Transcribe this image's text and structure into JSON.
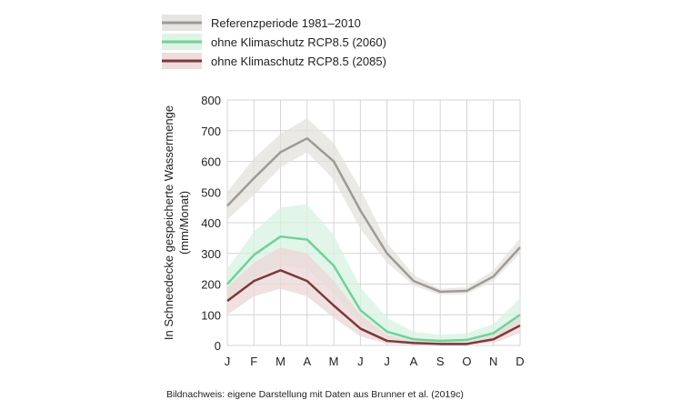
{
  "chart_data": {
    "type": "line",
    "categories": [
      "J",
      "F",
      "M",
      "A",
      "M",
      "J",
      "J",
      "A",
      "S",
      "O",
      "N",
      "D"
    ],
    "ylabel_line1": "In Schneedecke gespeicherte Wassermenge",
    "ylabel_line2": "(mm/Monat)",
    "ylim": [
      0,
      800
    ],
    "yticks": [
      0,
      100,
      200,
      300,
      400,
      500,
      600,
      700,
      800
    ],
    "grid": true,
    "legend_position": "top-left",
    "series": [
      {
        "name": "Referenzperiode 1981–2010",
        "color": "#9e9a96",
        "band_color": "#e3e1de",
        "values": [
          455,
          545,
          630,
          675,
          600,
          440,
          300,
          210,
          175,
          178,
          225,
          320
        ],
        "lower": [
          410,
          490,
          580,
          630,
          540,
          380,
          270,
          195,
          165,
          168,
          210,
          300
        ],
        "upper": [
          500,
          610,
          690,
          740,
          660,
          510,
          335,
          230,
          185,
          190,
          245,
          350
        ]
      },
      {
        "name": "ohne Klimaschutz RCP8.5 (2060)",
        "color": "#6fd29a",
        "band_color": "#d8f1e2",
        "values": [
          200,
          295,
          355,
          345,
          260,
          115,
          45,
          20,
          15,
          18,
          40,
          100
        ],
        "lower": [
          150,
          220,
          260,
          250,
          170,
          70,
          25,
          10,
          7,
          8,
          20,
          65
        ],
        "upper": [
          250,
          370,
          450,
          460,
          360,
          190,
          90,
          45,
          35,
          40,
          70,
          155
        ]
      },
      {
        "name": "ohne Klimaschutz RCP8.5 (2085)",
        "color": "#7a3a3a",
        "band_color": "#ecd6d6",
        "values": [
          145,
          210,
          245,
          210,
          130,
          55,
          15,
          8,
          5,
          5,
          20,
          65
        ],
        "lower": [
          100,
          160,
          185,
          160,
          90,
          30,
          5,
          2,
          2,
          2,
          8,
          40
        ],
        "upper": [
          190,
          270,
          320,
          300,
          210,
          100,
          35,
          15,
          12,
          12,
          35,
          95
        ]
      }
    ]
  },
  "source_note": "Bildnachweis: eigene Darstellung mit Daten aus Brunner et al. (2019c)"
}
